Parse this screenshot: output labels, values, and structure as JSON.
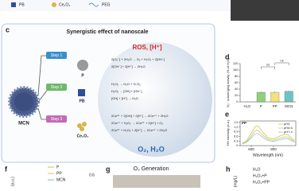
{
  "top_legend": [
    "PB",
    "Ce₂O₃",
    "PEG"
  ],
  "panel_c": {
    "label": "c",
    "title": "Synergistic effect of nanoscale",
    "mcn": "MCN",
    "steps": [
      "Step 1",
      "Step 2",
      "Step 3"
    ],
    "particles": [
      "P",
      "PB",
      "Ce₂O₃"
    ],
    "ros": "ROS, [H⁺]",
    "step1_eqs": [
      "2[O₂⁻] + 2H₂O → O₂ + H₂O₂ + 2[OH⁻]",
      "2[OH⁻] + 2[H⁺] → 2H₂O"
    ],
    "step2_eqs": [
      "H₂O₂ → H₂O + ½ O₂",
      "H₂O₂ → [OH] + [OH⁻]",
      "[OH] + [H⁺] → H₂O"
    ],
    "step3_eqs": [
      "2Ce³⁺ + 2[OH] + 2[H⁺] → 2Ce⁴⁺ + 2H₂O",
      "2Ce⁴⁺ + H₂O₂ → 2Ce³⁺ + 2[H⁺] + O₂",
      "2Ce³⁺ + H₂O₂ + 2[H⁺] → 2Ce⁴⁺ + 2H₂O"
    ],
    "products": "O₂, H₂O"
  },
  "chart_data": [
    {
      "type": "bar",
      "label": "d",
      "ylabel": "O₂⁻ scavenging activity (% of H₂O)",
      "categories": [
        "H₂O",
        "P",
        "PP",
        "MCN"
      ],
      "values": [
        0,
        30,
        30,
        33
      ],
      "errors": [
        0.5,
        1.5,
        1.5,
        1.2
      ],
      "colors": [
        "#9e9e9e",
        "#8fd17a",
        "#f2e27a",
        "#6cc4c0"
      ],
      "ylim": [
        0,
        120
      ],
      "yticks": [
        0,
        20,
        40,
        60,
        80,
        100,
        120
      ],
      "annotations": [
        "ns",
        "ns"
      ]
    },
    {
      "type": "line",
      "label": "e",
      "subtitle": "PP",
      "ylabel": "·OH Intensity (a.u.)",
      "xlabel": "Wavelength (nm)",
      "x": [
        520,
        560,
        600,
        630,
        650,
        670,
        700,
        750,
        800,
        850,
        900,
        930,
        960,
        990
      ],
      "series": [
        {
          "name": "pH4",
          "color": "#b9cf55",
          "values": [
            0.15,
            0.35,
            0.8,
            1.2,
            1.3,
            1.2,
            0.9,
            0.5,
            0.45,
            0.6,
            0.75,
            0.7,
            0.5,
            0.35
          ]
        },
        {
          "name": "pH6.5",
          "color": "#f0b95a",
          "values": [
            0.12,
            0.27,
            0.62,
            0.93,
            1.0,
            0.93,
            0.7,
            0.4,
            0.35,
            0.47,
            0.58,
            0.55,
            0.4,
            0.28
          ]
        },
        {
          "name": "pH7.4",
          "color": "#8fc3e6",
          "values": [
            0.1,
            0.22,
            0.5,
            0.74,
            0.8,
            0.74,
            0.56,
            0.32,
            0.28,
            0.37,
            0.46,
            0.44,
            0.32,
            0.22
          ]
        }
      ],
      "xlim": [
        500,
        1000
      ],
      "xticks": [
        600,
        800
      ],
      "ylim": [
        0,
        1.6
      ],
      "yticks": [
        0,
        0.3,
        0.6,
        0.9,
        1.2,
        1.5
      ]
    }
  ],
  "panel_f": {
    "label": "f",
    "ylabel": "(a.u.)",
    "legend": [
      "P",
      "PP",
      "MCN"
    ],
    "tick": "0.6"
  },
  "panel_g": {
    "label": "g",
    "title": "O₂ Generation"
  },
  "panel_h": {
    "label": "h",
    "ylabel": "(mg/L)",
    "legend": [
      "H₂O",
      "H₂O₂+P",
      "H₂O₂+PP"
    ]
  }
}
